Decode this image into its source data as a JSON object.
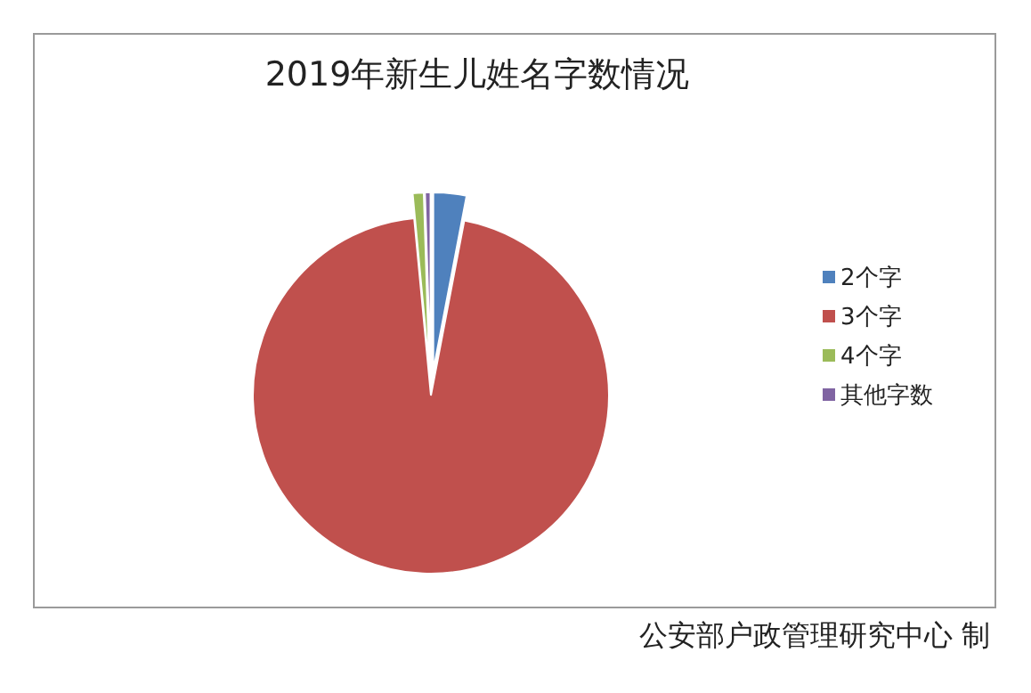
{
  "chart_data": {
    "type": "pie",
    "title": "2019年新生儿姓名字数情况",
    "categories": [
      "2个字",
      "3个字",
      "4个字",
      "其他字数"
    ],
    "values": [
      3,
      95.5,
      1,
      0.5
    ],
    "colors": [
      "#4f81bd",
      "#c0504d",
      "#9bbb59",
      "#8064a2"
    ],
    "legend": "right",
    "annotations": [
      "公安部户政管理研究中心 制"
    ]
  }
}
